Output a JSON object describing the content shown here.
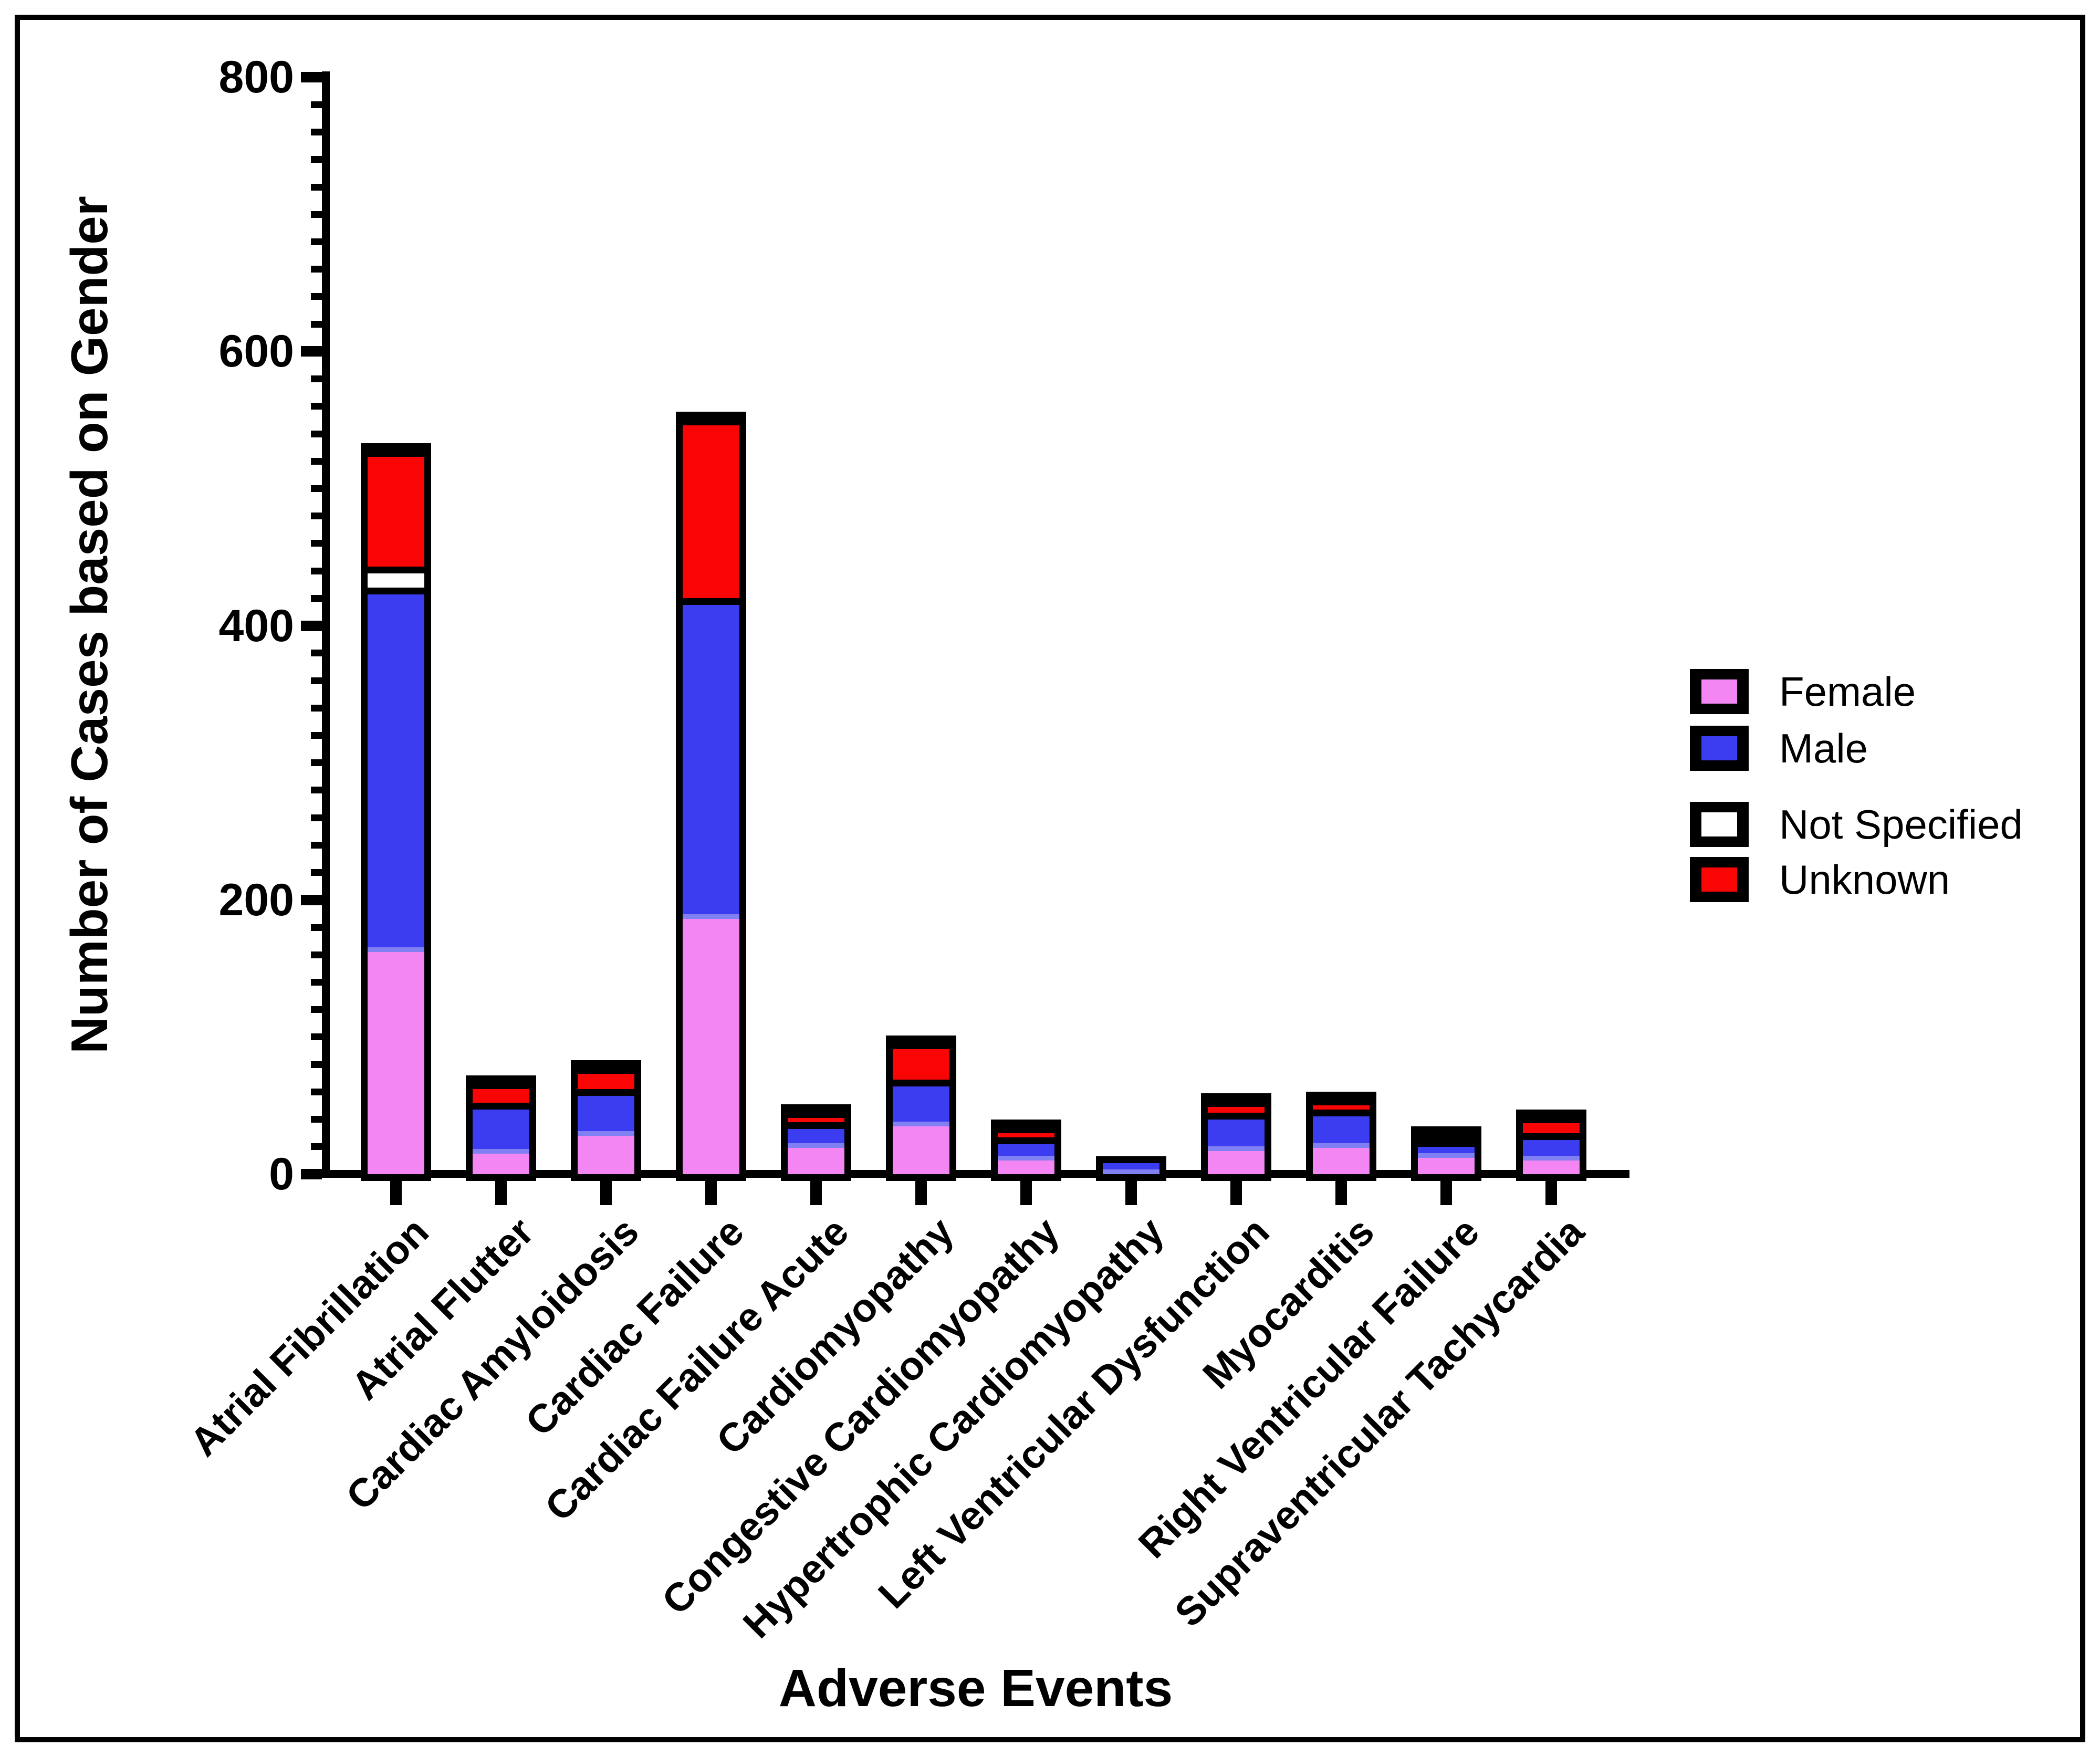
{
  "chart_data": {
    "type": "bar",
    "stacked": true,
    "title": "",
    "xlabel": "Adverse Events",
    "ylabel": "Number of Cases based on Gender",
    "ylim": [
      0,
      800
    ],
    "yticks": [
      0,
      200,
      400,
      600,
      800
    ],
    "minor_tick_step": 20,
    "grid": false,
    "legend_position": "right",
    "categories": [
      "Atrial Fibrillation",
      "Atrial Flutter",
      "Cardiac Amyloidosis",
      "Cardiac Failure",
      "Cardiac Failure Acute",
      "Cardiomyopathy",
      "Congestive Cardiomyopathy",
      "Hypertrophic Cardiomyopathy",
      "Left Ventricular Dysfunction",
      "Myocarditis",
      "Right Ventricular Failure",
      "Supraventricular Tachycardia"
    ],
    "series": [
      {
        "name": "Female",
        "color": "#F386F2",
        "values": [
          162,
          15,
          28,
          186,
          19,
          35,
          10,
          0,
          17,
          19,
          12,
          10
        ]
      },
      {
        "name": "Male",
        "color": "#3C3CF0",
        "values": [
          266,
          37,
          34,
          234,
          19,
          34,
          17,
          8,
          28,
          28,
          13,
          20
        ]
      },
      {
        "name": "Not Specified",
        "color": "#FFFFFF",
        "values": [
          15,
          0,
          0,
          0,
          0,
          0,
          0,
          0,
          0,
          0,
          0,
          0
        ]
      },
      {
        "name": "Unknown",
        "color": "#FA0505",
        "values": [
          85,
          15,
          16,
          131,
          8,
          27,
          8,
          0,
          9,
          8,
          5,
          12
        ]
      }
    ],
    "totals": [
      528,
      67,
      78,
      551,
      46,
      96,
      35,
      8,
      54,
      55,
      30,
      42
    ]
  },
  "colors": {
    "outline": "#000000",
    "background": "#ffffff",
    "male_edge_highlight": "#8080F2"
  }
}
